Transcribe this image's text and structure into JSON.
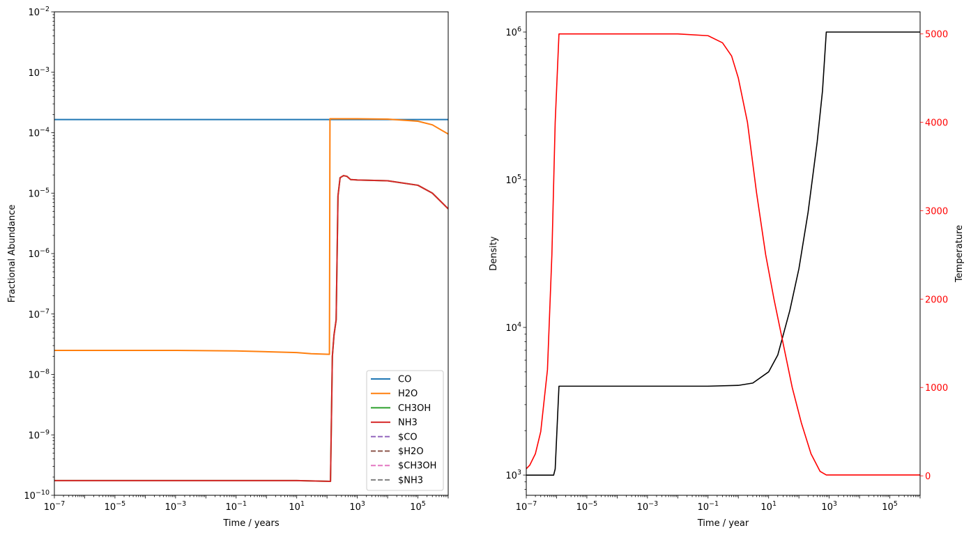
{
  "chart_data": [
    {
      "type": "line",
      "xlabel": "Time / years",
      "ylabel": "Fractional Abundance",
      "xscale": "log",
      "yscale": "log",
      "xlim": [
        1e-07,
        1000000.0
      ],
      "ylim": [
        1e-10,
        0.01
      ],
      "xticks": [
        {
          "v": 1e-07,
          "e": "−7"
        },
        {
          "v": 1e-05,
          "e": "−5"
        },
        {
          "v": 0.001,
          "e": "−3"
        },
        {
          "v": 0.1,
          "e": "−1"
        },
        {
          "v": 10.0,
          "e": "1"
        },
        {
          "v": 1000.0,
          "e": "3"
        },
        {
          "v": 100000.0,
          "e": "5"
        }
      ],
      "yticks": [
        {
          "v": 1e-10,
          "e": "−10"
        },
        {
          "v": 1e-09,
          "e": "−9"
        },
        {
          "v": 1e-08,
          "e": "−8"
        },
        {
          "v": 1e-07,
          "e": "−7"
        },
        {
          "v": 1e-06,
          "e": "−6"
        },
        {
          "v": 1e-05,
          "e": "−5"
        },
        {
          "v": 0.0001,
          "e": "−4"
        },
        {
          "v": 0.001,
          "e": "−3"
        },
        {
          "v": 0.01,
          "e": "−2"
        }
      ],
      "tick_base": "10",
      "legend_position": "lower-right",
      "series": [
        {
          "name": "CO",
          "color": "#1f77b4",
          "dash": false,
          "points": [
            [
              1e-07,
              0.000165
            ],
            [
              1000000.0,
              0.000165
            ]
          ]
        },
        {
          "name": "H2O",
          "color": "#ff7f0e",
          "dash": false,
          "points": [
            [
              1e-07,
              2.5e-08
            ],
            [
              0.001,
              2.5e-08
            ],
            [
              0.1,
              2.45e-08
            ],
            [
              10.0,
              2.3e-08
            ],
            [
              30,
              2.2e-08
            ],
            [
              120,
              2.15e-08
            ],
            [
              125,
              0.00017
            ],
            [
              1000.0,
              0.00017
            ],
            [
              10000.0,
              0.000168
            ],
            [
              100000.0,
              0.000155
            ],
            [
              300000.0,
              0.000135
            ],
            [
              1000000.0,
              9.5e-05
            ]
          ]
        },
        {
          "name": "CH3OH",
          "color": "#2ca02c",
          "dash": false,
          "points": [
            [
              1e-07,
              1.75e-10
            ],
            [
              10.0,
              1.75e-10
            ],
            [
              130,
              1.7e-10
            ],
            [
              150,
              2e-08
            ],
            [
              170,
              4.5e-08
            ],
            [
              200,
              8e-08
            ],
            [
              230,
              9e-06
            ],
            [
              270,
              1.8e-05
            ],
            [
              350,
              1.95e-05
            ],
            [
              450,
              1.9e-05
            ],
            [
              600,
              1.68e-05
            ],
            [
              1000.0,
              1.65e-05
            ],
            [
              10000.0,
              1.6e-05
            ],
            [
              100000.0,
              1.35e-05
            ],
            [
              300000.0,
              1e-05
            ],
            [
              1000000.0,
              5.5e-06
            ]
          ]
        },
        {
          "name": "NH3",
          "color": "#d62728",
          "dash": false,
          "points": [
            [
              1e-07,
              1.75e-10
            ],
            [
              10.0,
              1.75e-10
            ],
            [
              130,
              1.7e-10
            ],
            [
              150,
              2e-08
            ],
            [
              170,
              4.5e-08
            ],
            [
              200,
              8e-08
            ],
            [
              230,
              9e-06
            ],
            [
              270,
              1.8e-05
            ],
            [
              350,
              1.95e-05
            ],
            [
              450,
              1.9e-05
            ],
            [
              600,
              1.68e-05
            ],
            [
              1000.0,
              1.65e-05
            ],
            [
              10000.0,
              1.6e-05
            ],
            [
              100000.0,
              1.35e-05
            ],
            [
              300000.0,
              1e-05
            ],
            [
              1000000.0,
              5.5e-06
            ]
          ]
        },
        {
          "name": "$CO",
          "color": "#9467bd",
          "dash": true,
          "points": []
        },
        {
          "name": "$H2O",
          "color": "#8c564b",
          "dash": true,
          "points": []
        },
        {
          "name": "$CH3OH",
          "color": "#e377c2",
          "dash": true,
          "points": []
        },
        {
          "name": "$NH3",
          "color": "#7f7f7f",
          "dash": true,
          "points": []
        }
      ]
    },
    {
      "type": "line",
      "xlabel": "Time / year",
      "ylabel": "Density",
      "y2label": "Temperature",
      "xscale": "log",
      "yscale": "log",
      "xlim": [
        1e-07,
        1000000.0
      ],
      "ylim": [
        730.0,
        1370000.0
      ],
      "y2lim": [
        -220,
        5250
      ],
      "xticks": [
        {
          "v": 1e-07,
          "e": "−7"
        },
        {
          "v": 1e-05,
          "e": "−5"
        },
        {
          "v": 0.001,
          "e": "−3"
        },
        {
          "v": 0.1,
          "e": "−1"
        },
        {
          "v": 10.0,
          "e": "1"
        },
        {
          "v": 1000.0,
          "e": "3"
        },
        {
          "v": 100000.0,
          "e": "5"
        }
      ],
      "yticks": [
        {
          "v": 1000.0,
          "e": "3"
        },
        {
          "v": 10000.0,
          "e": "4"
        },
        {
          "v": 100000.0,
          "e": "5"
        },
        {
          "v": 1000000.0,
          "e": "6"
        }
      ],
      "y2ticks": [
        "0",
        "1000",
        "2000",
        "3000",
        "4000",
        "5000"
      ],
      "tick_base": "10",
      "series": [
        {
          "name": "",
          "axis": "left",
          "color": "#000000",
          "points": [
            [
              1e-07,
              1000.0
            ],
            [
              8e-07,
              1000.0
            ],
            [
              9e-07,
              1100.0
            ],
            [
              1.2e-06,
              4000.0
            ],
            [
              0.1,
              4000.0
            ],
            [
              1,
              4050.0
            ],
            [
              3,
              4200.0
            ],
            [
              10,
              5000.0
            ],
            [
              20,
              6500.0
            ],
            [
              50,
              13000.0
            ],
            [
              100,
              25000.0
            ],
            [
              200,
              60000.0
            ],
            [
              400,
              180000.0
            ],
            [
              600,
              400000.0
            ],
            [
              800,
              1000000.0
            ],
            [
              1000000.0,
              1000000.0
            ]
          ]
        },
        {
          "name": "",
          "axis": "right",
          "color": "#ff0000",
          "points": [
            [
              1e-07,
              80
            ],
            [
              1.3e-07,
              120
            ],
            [
              2e-07,
              250
            ],
            [
              3e-07,
              500
            ],
            [
              5e-07,
              1200
            ],
            [
              7e-07,
              2500
            ],
            [
              9e-07,
              4000
            ],
            [
              1.2e-06,
              5000
            ],
            [
              0.01,
              5000
            ],
            [
              0.1,
              4980
            ],
            [
              0.3,
              4900
            ],
            [
              0.6,
              4750
            ],
            [
              1,
              4500
            ],
            [
              2,
              4000
            ],
            [
              4,
              3200
            ],
            [
              8,
              2500
            ],
            [
              15,
              2000
            ],
            [
              30,
              1500
            ],
            [
              60,
              1000
            ],
            [
              120,
              600
            ],
            [
              250,
              250
            ],
            [
              500,
              50
            ],
            [
              800,
              10
            ],
            [
              1000000.0,
              10
            ]
          ]
        }
      ]
    }
  ]
}
